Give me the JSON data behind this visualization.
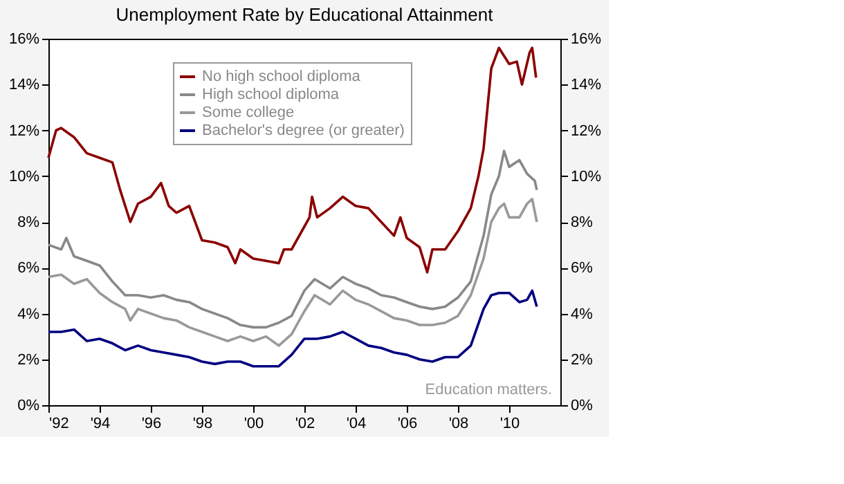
{
  "chart_data": {
    "type": "line",
    "title": "Unemployment Rate by Educational Attainment",
    "xlim": [
      1992,
      2012
    ],
    "xticks": [
      {
        "value": 1992,
        "label": "'92"
      },
      {
        "value": 1994,
        "label": "'94"
      },
      {
        "value": 1996,
        "label": "'96"
      },
      {
        "value": 1998,
        "label": "'98"
      },
      {
        "value": 2000,
        "label": "'00"
      },
      {
        "value": 2002,
        "label": "'02"
      },
      {
        "value": 2004,
        "label": "'04"
      },
      {
        "value": 2006,
        "label": "'06"
      },
      {
        "value": 2008,
        "label": "'08"
      },
      {
        "value": 2010,
        "label": "'10"
      }
    ],
    "ylim": [
      0,
      16
    ],
    "yticks": [
      {
        "value": 0,
        "label": "0%"
      },
      {
        "value": 2,
        "label": "2%"
      },
      {
        "value": 4,
        "label": "4%"
      },
      {
        "value": 6,
        "label": "6%"
      },
      {
        "value": 8,
        "label": "8%"
      },
      {
        "value": 10,
        "label": "10%"
      },
      {
        "value": 12,
        "label": "12%"
      },
      {
        "value": 14,
        "label": "14%"
      },
      {
        "value": 16,
        "label": "16%"
      }
    ],
    "y2lim": [
      0,
      16
    ],
    "y2ticks": [
      {
        "value": 0,
        "label": "0%"
      },
      {
        "value": 2,
        "label": "2%"
      },
      {
        "value": 4,
        "label": "4%"
      },
      {
        "value": 6,
        "label": "6%"
      },
      {
        "value": 8,
        "label": "8%"
      },
      {
        "value": 10,
        "label": "10%"
      },
      {
        "value": 12,
        "label": "12%"
      },
      {
        "value": 14,
        "label": "14%"
      },
      {
        "value": 16,
        "label": "16%"
      }
    ],
    "grid": false,
    "legend": "top",
    "marker": "none",
    "line_style": "solid",
    "annotations": [
      "Education matters."
    ],
    "series": [
      {
        "name": "No high school diploma",
        "color": "#8b0000",
        "x": [
          1992.0,
          1992.3,
          1992.5,
          1993.0,
          1993.5,
          1994.0,
          1994.5,
          1994.8,
          1995.2,
          1995.5,
          1996.0,
          1996.4,
          1996.7,
          1997.0,
          1997.5,
          1998.0,
          1998.5,
          1999.0,
          1999.3,
          1999.5,
          2000.0,
          2000.5,
          2001.0,
          2001.2,
          2001.5,
          2001.9,
          2002.2,
          2002.3,
          2002.5,
          2003.0,
          2003.5,
          2004.0,
          2004.5,
          2005.0,
          2005.5,
          2005.75,
          2006.0,
          2006.5,
          2006.8,
          2007.0,
          2007.5,
          2008.0,
          2008.5,
          2008.8,
          2009.0,
          2009.3,
          2009.6,
          2010.0,
          2010.3,
          2010.5,
          2010.8,
          2010.9,
          2011.05
        ],
        "values": [
          10.8,
          12.0,
          12.1,
          11.7,
          11.0,
          10.8,
          10.6,
          9.4,
          8.0,
          8.8,
          9.1,
          9.7,
          8.7,
          8.4,
          8.7,
          7.2,
          7.1,
          6.9,
          6.2,
          6.8,
          6.4,
          6.3,
          6.2,
          6.8,
          6.8,
          7.6,
          8.2,
          9.1,
          8.2,
          8.6,
          9.1,
          8.7,
          8.6,
          8.0,
          7.4,
          8.2,
          7.3,
          6.9,
          5.8,
          6.8,
          6.8,
          7.6,
          8.6,
          10.0,
          11.2,
          14.7,
          15.6,
          14.9,
          15.0,
          14.0,
          15.4,
          15.6,
          14.3
        ]
      },
      {
        "name": "High school diploma",
        "color": "#888888",
        "x": [
          1992.0,
          1992.5,
          1992.7,
          1993.0,
          1993.5,
          1994.0,
          1994.5,
          1995.0,
          1995.5,
          1996.0,
          1996.5,
          1997.0,
          1997.5,
          1998.0,
          1998.5,
          1999.0,
          1999.5,
          2000.0,
          2000.5,
          2001.0,
          2001.5,
          2002.0,
          2002.4,
          2003.0,
          2003.5,
          2004.0,
          2004.5,
          2005.0,
          2005.5,
          2006.0,
          2006.5,
          2007.0,
          2007.5,
          2008.0,
          2008.5,
          2009.0,
          2009.3,
          2009.6,
          2009.8,
          2010.0,
          2010.4,
          2010.7,
          2011.0,
          2011.08
        ],
        "values": [
          7.0,
          6.8,
          7.3,
          6.5,
          6.3,
          6.1,
          5.4,
          4.8,
          4.8,
          4.7,
          4.8,
          4.6,
          4.5,
          4.2,
          4.0,
          3.8,
          3.5,
          3.4,
          3.4,
          3.6,
          3.9,
          5.0,
          5.5,
          5.1,
          5.6,
          5.3,
          5.1,
          4.8,
          4.7,
          4.5,
          4.3,
          4.2,
          4.3,
          4.7,
          5.4,
          7.4,
          9.2,
          10.0,
          11.1,
          10.4,
          10.7,
          10.1,
          9.8,
          9.4
        ]
      },
      {
        "name": "Some college",
        "color": "#999999",
        "x": [
          1992.0,
          1992.5,
          1993.0,
          1993.5,
          1994.0,
          1994.5,
          1995.0,
          1995.2,
          1995.5,
          1996.0,
          1996.5,
          1997.0,
          1997.5,
          1998.0,
          1998.5,
          1999.0,
          1999.5,
          2000.0,
          2000.5,
          2001.0,
          2001.5,
          2002.0,
          2002.4,
          2003.0,
          2003.5,
          2004.0,
          2004.5,
          2005.0,
          2005.5,
          2006.0,
          2006.5,
          2007.0,
          2007.5,
          2008.0,
          2008.5,
          2009.0,
          2009.3,
          2009.6,
          2009.8,
          2010.0,
          2010.4,
          2010.7,
          2010.9,
          2011.08
        ],
        "values": [
          5.6,
          5.7,
          5.3,
          5.5,
          4.9,
          4.5,
          4.2,
          3.7,
          4.2,
          4.0,
          3.8,
          3.7,
          3.4,
          3.2,
          3.0,
          2.8,
          3.0,
          2.8,
          3.0,
          2.6,
          3.1,
          4.1,
          4.8,
          4.4,
          5.0,
          4.6,
          4.4,
          4.1,
          3.8,
          3.7,
          3.5,
          3.5,
          3.6,
          3.9,
          4.8,
          6.4,
          8.0,
          8.6,
          8.8,
          8.2,
          8.2,
          8.8,
          9.0,
          8.0
        ]
      },
      {
        "name": "Bachelor's degree (or greater)",
        "color": "#000080",
        "x": [
          1992.0,
          1992.5,
          1993.0,
          1993.5,
          1994.0,
          1994.5,
          1995.0,
          1995.5,
          1996.0,
          1996.5,
          1997.0,
          1997.5,
          1998.0,
          1998.5,
          1999.0,
          1999.5,
          2000.0,
          2000.5,
          2001.0,
          2001.5,
          2002.0,
          2002.5,
          2003.0,
          2003.5,
          2004.0,
          2004.5,
          2005.0,
          2005.5,
          2006.0,
          2006.5,
          2007.0,
          2007.5,
          2008.0,
          2008.5,
          2009.0,
          2009.3,
          2009.6,
          2010.0,
          2010.4,
          2010.7,
          2010.9,
          2011.08
        ],
        "values": [
          3.2,
          3.2,
          3.3,
          2.8,
          2.9,
          2.7,
          2.4,
          2.6,
          2.4,
          2.3,
          2.2,
          2.1,
          1.9,
          1.8,
          1.9,
          1.9,
          1.7,
          1.7,
          1.7,
          2.2,
          2.9,
          2.9,
          3.0,
          3.2,
          2.9,
          2.6,
          2.5,
          2.3,
          2.2,
          2.0,
          1.9,
          2.1,
          2.1,
          2.6,
          4.2,
          4.8,
          4.9,
          4.9,
          4.5,
          4.6,
          5.0,
          4.3
        ]
      }
    ]
  }
}
